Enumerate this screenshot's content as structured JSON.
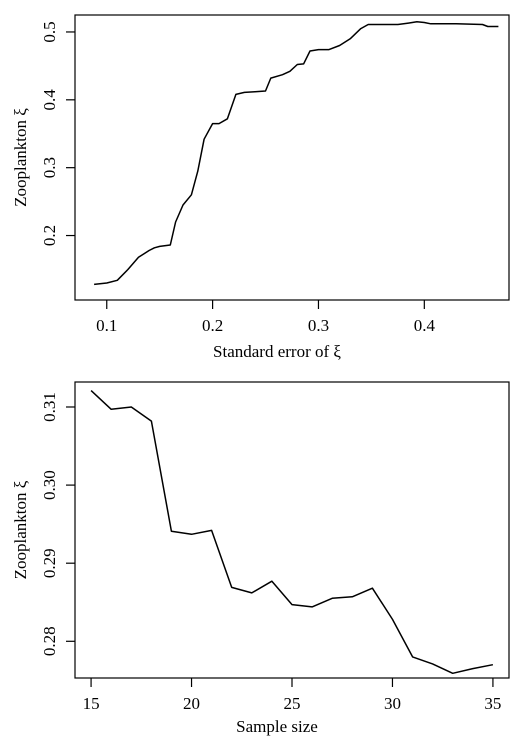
{
  "chart_data": [
    {
      "type": "line",
      "title": "",
      "xlabel": "Standard error of ξ",
      "ylabel": "Zooplankton ξ",
      "xlim": [
        0.07,
        0.48
      ],
      "ylim": [
        0.105,
        0.525
      ],
      "xticks": [
        0.1,
        0.2,
        0.3,
        0.4
      ],
      "xtick_labels": [
        "0.1",
        "0.2",
        "0.3",
        "0.4"
      ],
      "yticks": [
        0.2,
        0.3,
        0.4,
        0.5
      ],
      "ytick_labels": [
        "0.2",
        "0.3",
        "0.4",
        "0.5"
      ],
      "grid": false,
      "series": [
        {
          "x": [
            0.088,
            0.1,
            0.11,
            0.12,
            0.13,
            0.14,
            0.145,
            0.15,
            0.16,
            0.165,
            0.172,
            0.18,
            0.186,
            0.192,
            0.2,
            0.206,
            0.214,
            0.222,
            0.23,
            0.24,
            0.25,
            0.255,
            0.266,
            0.273,
            0.28,
            0.286,
            0.292,
            0.3,
            0.31,
            0.32,
            0.33,
            0.34,
            0.347,
            0.36,
            0.375,
            0.385,
            0.393,
            0.4,
            0.406,
            0.43,
            0.455,
            0.46,
            0.47
          ],
          "y": [
            0.128,
            0.13,
            0.134,
            0.15,
            0.168,
            0.178,
            0.182,
            0.184,
            0.186,
            0.22,
            0.245,
            0.26,
            0.295,
            0.342,
            0.365,
            0.365,
            0.372,
            0.408,
            0.411,
            0.412,
            0.413,
            0.432,
            0.437,
            0.442,
            0.452,
            0.453,
            0.472,
            0.474,
            0.474,
            0.48,
            0.49,
            0.505,
            0.511,
            0.511,
            0.511,
            0.513,
            0.515,
            0.514,
            0.512,
            0.512,
            0.511,
            0.508,
            0.508
          ]
        }
      ]
    },
    {
      "type": "line",
      "title": "",
      "xlabel": "Sample size",
      "ylabel": "Zooplankton ξ",
      "xlim": [
        14.2,
        35.8
      ],
      "ylim": [
        0.2753,
        0.3132
      ],
      "xticks": [
        15,
        20,
        25,
        30,
        35
      ],
      "xtick_labels": [
        "15",
        "20",
        "25",
        "30",
        "35"
      ],
      "yticks": [
        0.28,
        0.29,
        0.3,
        0.31
      ],
      "ytick_labels": [
        "0.28",
        "0.29",
        "0.30",
        "0.31"
      ],
      "grid": false,
      "series": [
        {
          "x": [
            15,
            16,
            17,
            18,
            19,
            20,
            21,
            22,
            23,
            24,
            25,
            26,
            27,
            28,
            29,
            30,
            31,
            32,
            33,
            34,
            35
          ],
          "y": [
            0.3121,
            0.3097,
            0.31,
            0.3082,
            0.2941,
            0.2937,
            0.2942,
            0.2869,
            0.2862,
            0.2877,
            0.2847,
            0.2844,
            0.2855,
            0.2857,
            0.2868,
            0.2828,
            0.278,
            0.2771,
            0.2759,
            0.2765,
            0.277
          ]
        }
      ]
    }
  ]
}
